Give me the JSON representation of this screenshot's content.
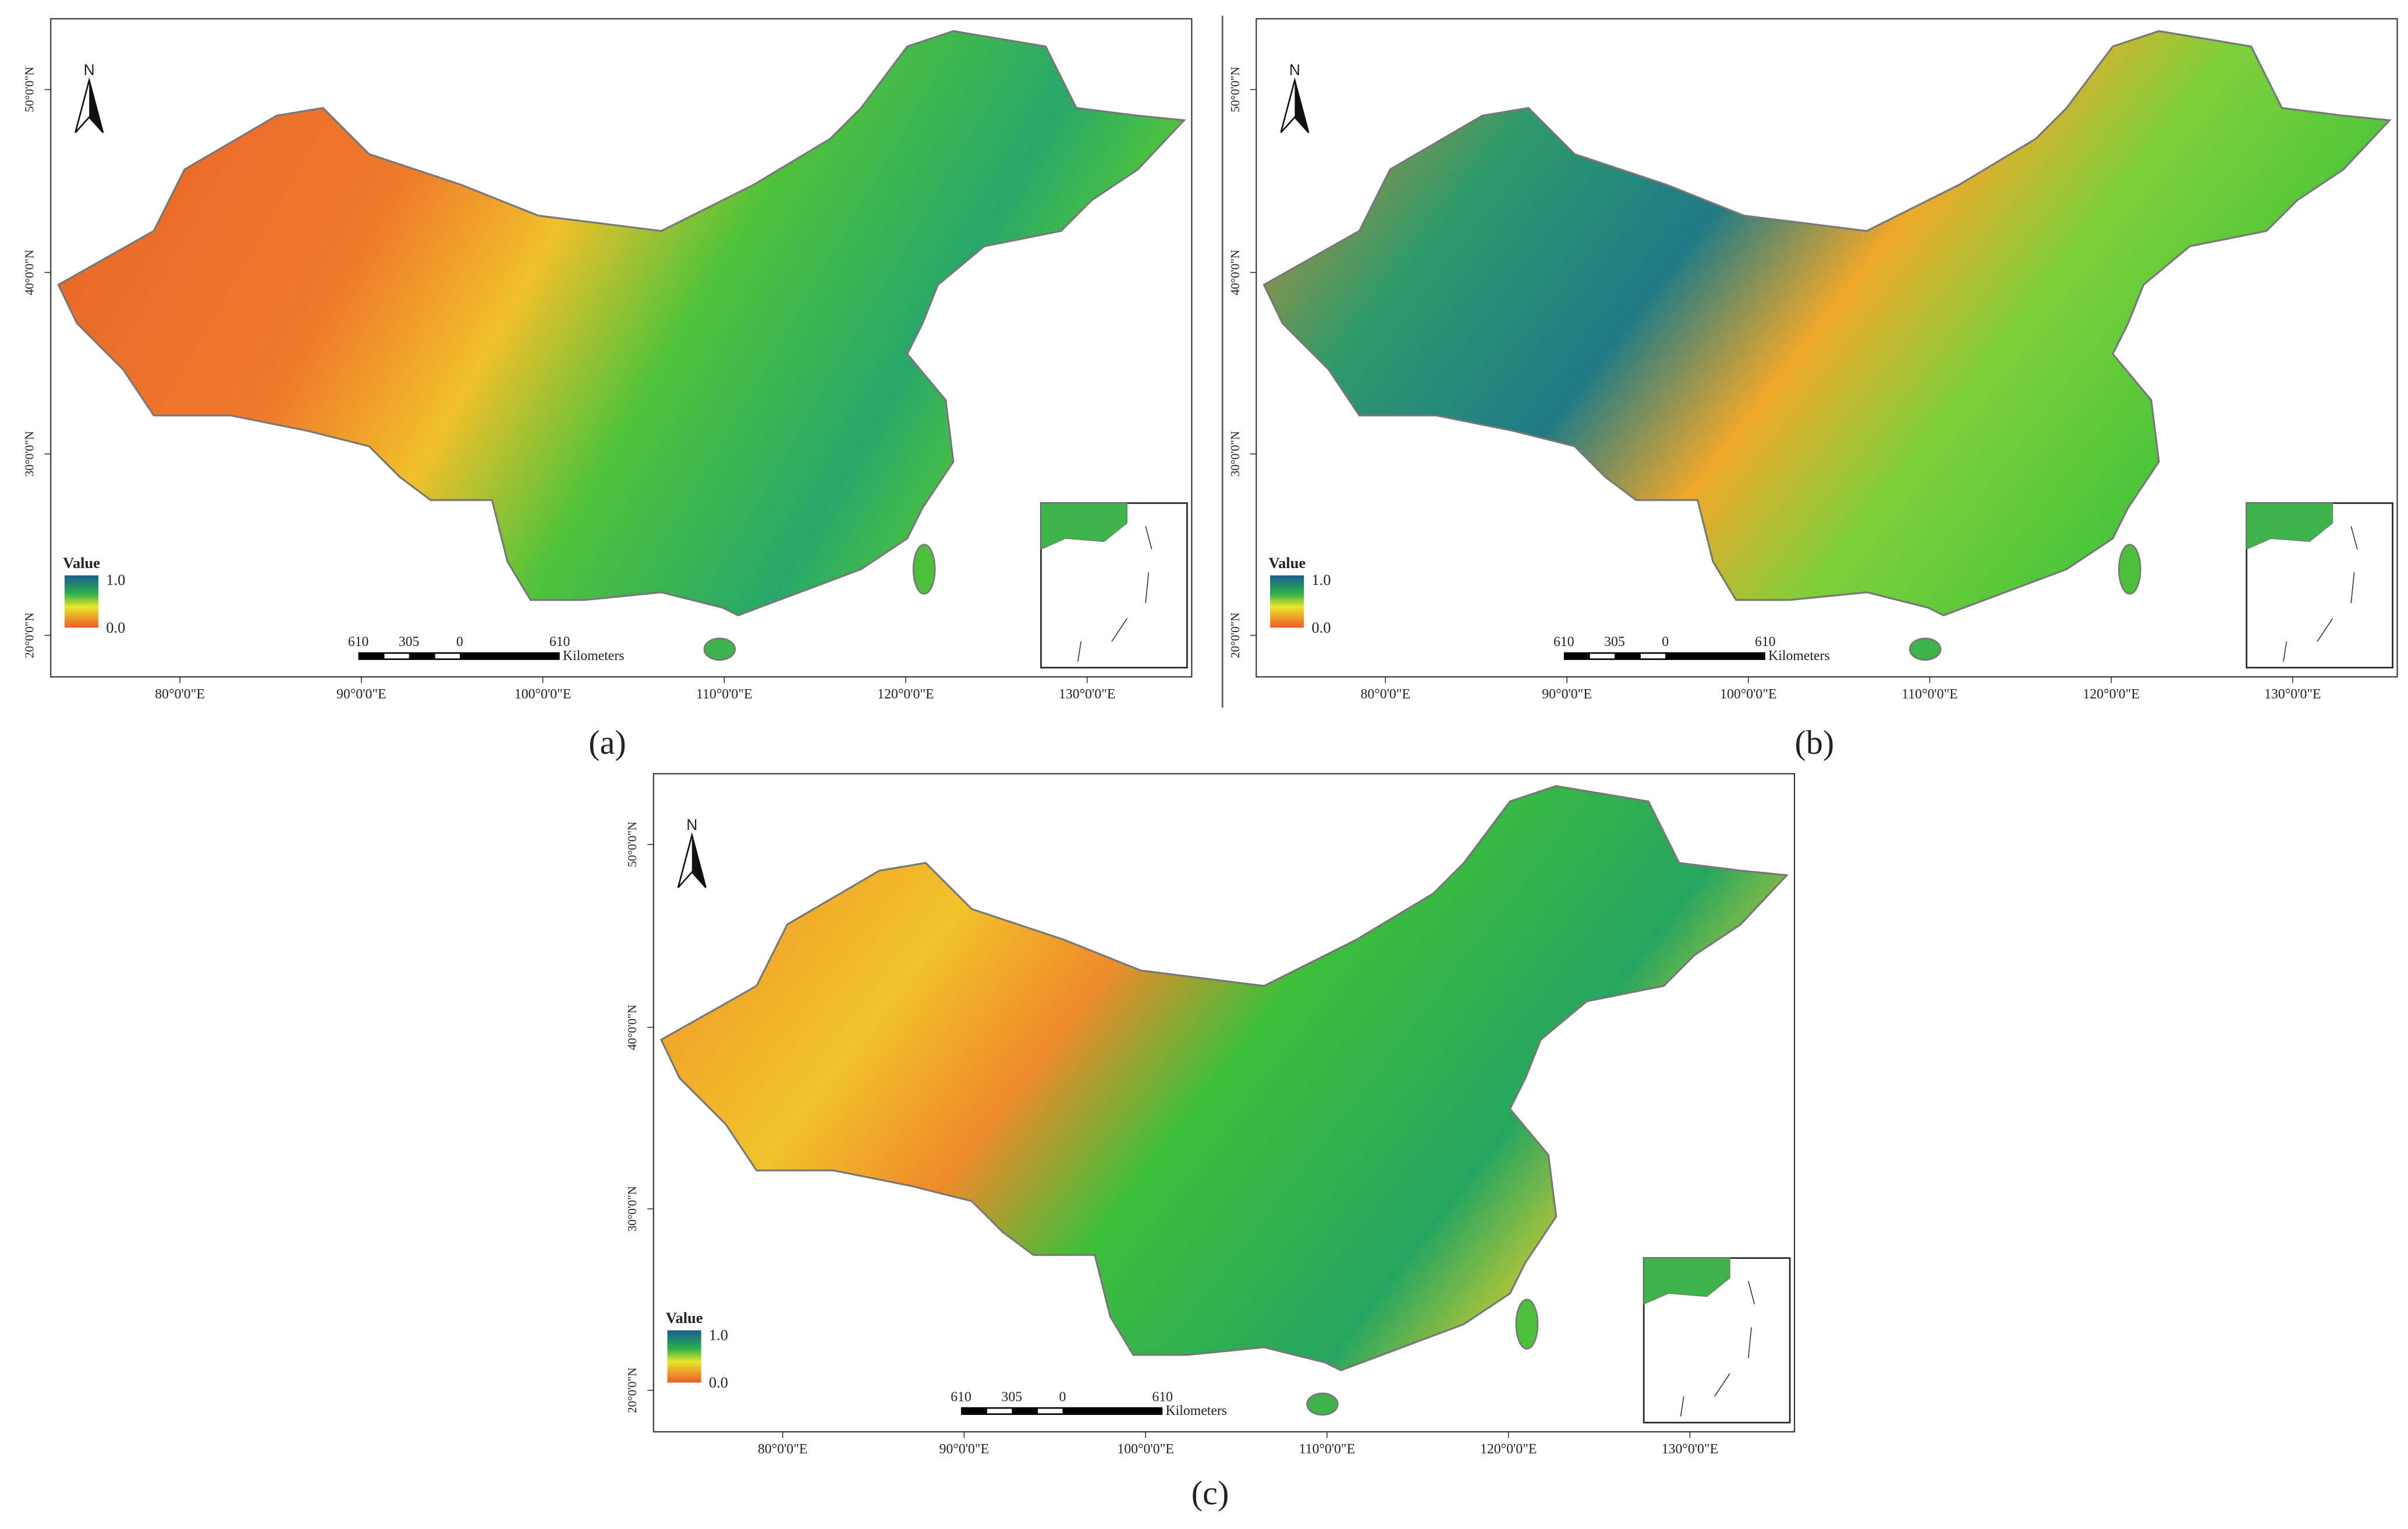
{
  "panels": [
    {
      "caption": "(a)"
    },
    {
      "caption": "(b)"
    },
    {
      "caption": "(c)"
    }
  ],
  "north": "N",
  "lat_labels": [
    "20°0'0\"N",
    "30°0'0\"N",
    "40°0'0\"N",
    "50°0'0\"N"
  ],
  "lon_labels": [
    "80°0'0\"E",
    "90°0'0\"E",
    "100°0'0\"E",
    "110°0'0\"E",
    "120°0'0\"E",
    "130°0'0\"E"
  ],
  "legend": {
    "title": "Value",
    "high": "1.0",
    "low": "0.0"
  },
  "scalebar": {
    "labels": [
      "610",
      "305",
      "0",
      "610"
    ],
    "unit": "Kilometers"
  }
}
